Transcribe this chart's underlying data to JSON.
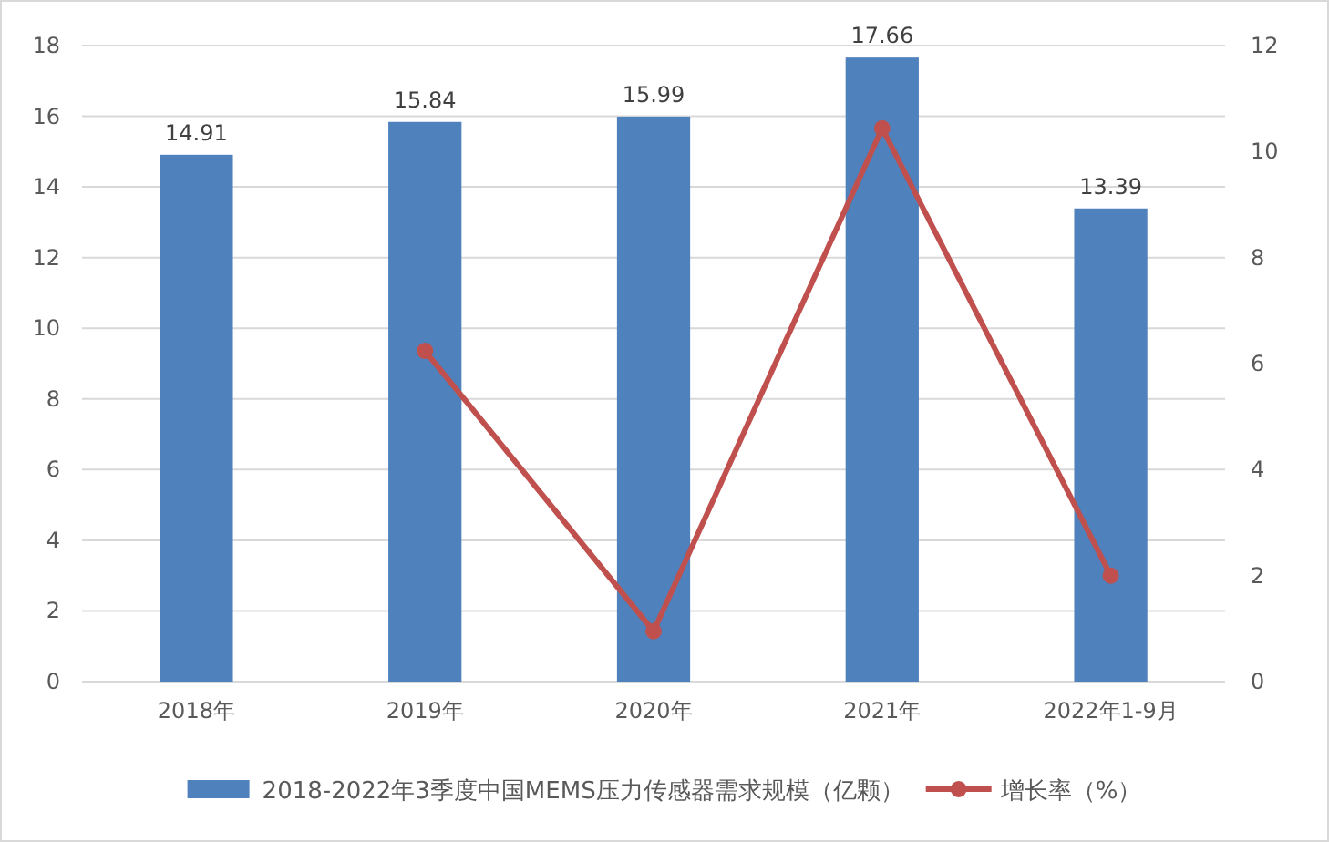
{
  "chart_data": {
    "type": "bar",
    "categories": [
      "2018年",
      "2019年",
      "2020年",
      "2021年",
      "2022年1-9月"
    ],
    "series": [
      {
        "name": "2018-2022年3季度中国MEMS压力传感器需求规模（亿颗）",
        "color": "#4f81bd",
        "values": [
          14.91,
          15.84,
          15.99,
          17.66,
          13.39
        ],
        "value_labels": [
          "14.91",
          "15.84",
          "15.99",
          "17.66",
          "13.39"
        ]
      },
      {
        "name": "增长率（%）",
        "type": "line",
        "axis": "y2",
        "color": "#c0504d",
        "marker": "circle",
        "values": [
          null,
          6.24,
          0.95,
          10.44,
          2.0
        ]
      }
    ],
    "ylim": [
      0,
      18
    ],
    "yticks": [
      0,
      2,
      4,
      6,
      8,
      10,
      12,
      14,
      16,
      18
    ],
    "y2lim": [
      0,
      12
    ],
    "y2ticks": [
      0,
      2,
      4,
      6,
      8,
      10,
      12
    ],
    "grid": "y",
    "legend": "bottom"
  }
}
